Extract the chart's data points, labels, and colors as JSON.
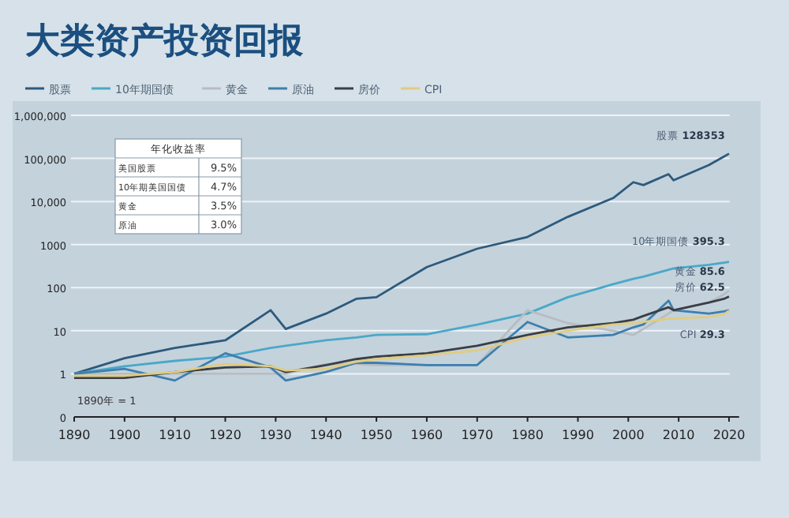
{
  "chart_data": {
    "type": "line",
    "title": "大类资产投资回报",
    "log": "y",
    "grid": "y",
    "legend": "top left",
    "marker": "none",
    "line_style": "solid",
    "xlim": [
      1890,
      2022
    ],
    "xticks": [
      1890,
      1900,
      1910,
      1920,
      1930,
      1940,
      1950,
      1960,
      1970,
      1980,
      1990,
      2000,
      2010,
      2020
    ],
    "ylim": [
      0.1,
      1000000
    ],
    "yticks": [
      {
        "value": 0.1,
        "label": "0"
      },
      1,
      10,
      100,
      {
        "value": 1000,
        "label": "1000"
      },
      {
        "value": 10000,
        "label": "10,000"
      },
      {
        "value": 100000,
        "label": "100,000"
      },
      {
        "value": 1000000,
        "label": "1,000,000"
      }
    ],
    "x": [
      1890,
      1900,
      1910,
      1920,
      1929,
      1932,
      1940,
      1946,
      1950,
      1960,
      1970,
      1980,
      1988,
      1997,
      2001,
      2003,
      2008,
      2009,
      2016,
      2019,
      2020
    ],
    "series": [
      {
        "name": "股票",
        "color": "#2c5a7c",
        "values": [
          1,
          2.3,
          4,
          6,
          30,
          11,
          25,
          55,
          60,
          300,
          800,
          1500,
          4400,
          12000,
          28000,
          24000,
          43000,
          31000,
          70000,
          110000,
          128353
        ]
      },
      {
        "name": "10年期国债",
        "color": "#4aa8c8",
        "values": [
          1,
          1.5,
          2,
          2.5,
          4,
          4.5,
          6,
          7,
          8,
          8.3,
          13.8,
          25,
          60,
          120,
          160,
          180,
          260,
          280,
          340,
          380,
          395.3
        ]
      },
      {
        "name": "黄金",
        "color": "#b8bcc2",
        "values": [
          1,
          1,
          1,
          1,
          1,
          1,
          1.7,
          1.7,
          1.6,
          1.6,
          1.6,
          30,
          15,
          10,
          8,
          11,
          25,
          30,
          45,
          70,
          85.6
        ]
      },
      {
        "name": "原油",
        "color": "#3d7fae",
        "values": [
          1,
          1.3,
          0.7,
          3,
          1.4,
          0.7,
          1.1,
          1.8,
          1.8,
          1.6,
          1.6,
          16,
          7,
          8,
          12,
          14,
          50,
          30,
          25,
          28,
          30
        ]
      },
      {
        "name": "房价",
        "color": "#3a3f44",
        "values": [
          0.8,
          0.8,
          1.1,
          1.4,
          1.5,
          1.1,
          1.6,
          2.2,
          2.5,
          3,
          4.5,
          8,
          12,
          15,
          18,
          22,
          35,
          30,
          45,
          55,
          62.5
        ]
      },
      {
        "name": "CPI",
        "color": "#e0cc80",
        "values": [
          0.9,
          0.9,
          1.1,
          1.7,
          1.5,
          1.2,
          1.3,
          1.9,
          2.2,
          2.7,
          3.5,
          7,
          10,
          14,
          15,
          16,
          19,
          19,
          21,
          24,
          29.3
        ]
      }
    ],
    "annotations": [
      "股票 128353",
      "10年期国债 395.3",
      "黄金 85.6",
      "房价 62.5",
      "CPI 29.3",
      "1890年 = 1",
      "年化收益率",
      "美国股票 9.5%",
      "10年期美国国债 4.7%",
      "黄金 3.5%",
      "原油 3.0%"
    ]
  }
}
